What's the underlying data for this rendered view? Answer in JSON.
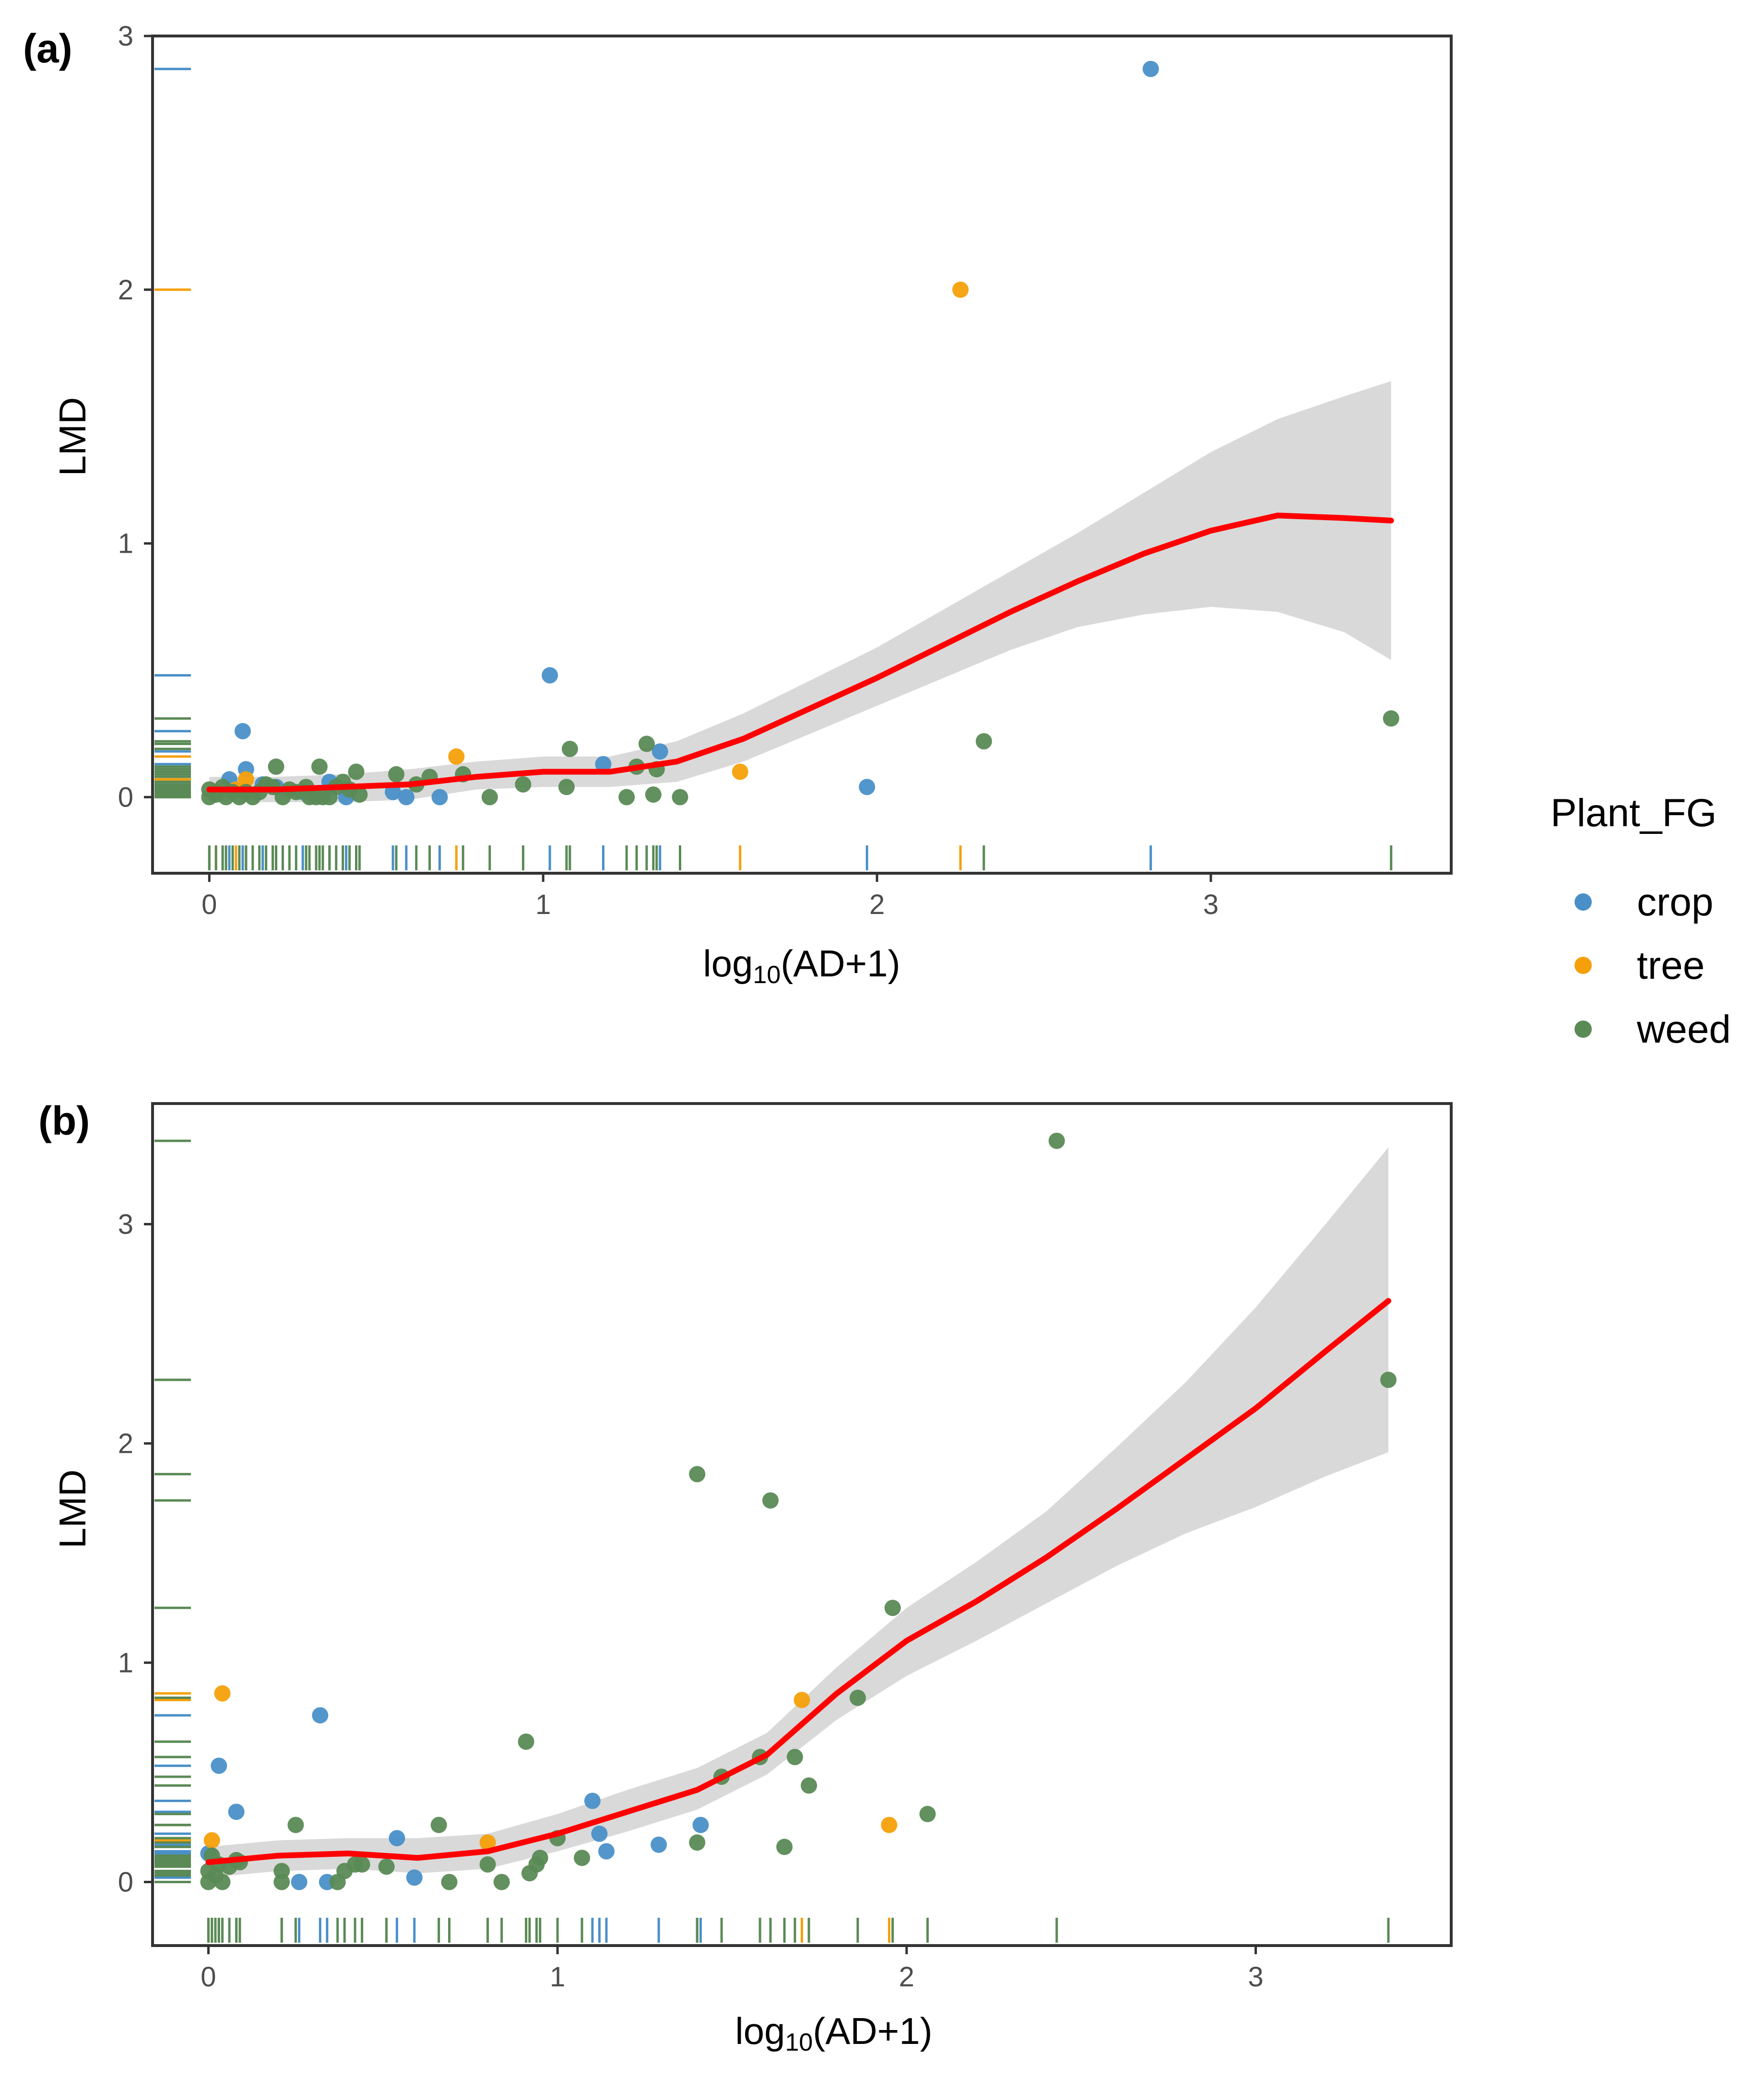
{
  "colors": {
    "crop": "#4A90C8",
    "tree": "#F5A00A",
    "weed": "#5A8A55",
    "smooth_line": "#FF0000",
    "ribbon": "#D9D9D9"
  },
  "legend": {
    "title": "Plant_FG",
    "items": [
      {
        "key": "crop",
        "label": "crop"
      },
      {
        "key": "tree",
        "label": "tree"
      },
      {
        "key": "weed",
        "label": "weed"
      }
    ]
  },
  "chart_data": [
    {
      "type": "scatter",
      "panel_label": "(a)",
      "xlabel_main": "log",
      "xlabel_sub": "10",
      "xlabel_rest": "(AD+1)",
      "ylabel": "LMD",
      "xlim": [
        -0.17,
        3.72
      ],
      "ylim": [
        -0.3,
        3.0
      ],
      "xticks": [
        0,
        1,
        2,
        3
      ],
      "yticks": [
        0,
        1,
        2,
        3
      ],
      "xtick_labels": [
        "0",
        "1",
        "2",
        "3"
      ],
      "ytick_labels": [
        "0",
        "1",
        "2",
        "3"
      ],
      "series": [
        {
          "name": "crop",
          "points": [
            [
              0.06,
              0.07
            ],
            [
              0.1,
              0.26
            ],
            [
              0.11,
              0.11
            ],
            [
              0.16,
              0.05
            ],
            [
              0.2,
              0.04
            ],
            [
              0.28,
              0.02
            ],
            [
              0.36,
              0.06
            ],
            [
              0.41,
              0.0
            ],
            [
              0.55,
              0.02
            ],
            [
              0.59,
              0.0
            ],
            [
              0.69,
              0.0
            ],
            [
              1.02,
              0.48
            ],
            [
              1.18,
              0.13
            ],
            [
              1.35,
              0.18
            ],
            [
              1.97,
              0.04
            ],
            [
              2.82,
              2.87
            ]
          ]
        },
        {
          "name": "tree",
          "points": [
            [
              0.02,
              0.02
            ],
            [
              0.08,
              0.03
            ],
            [
              0.11,
              0.07
            ],
            [
              0.74,
              0.16
            ],
            [
              1.59,
              0.1
            ],
            [
              2.25,
              2.0
            ]
          ]
        },
        {
          "name": "weed",
          "points": [
            [
              0.0,
              0.0
            ],
            [
              0.0,
              0.03
            ],
            [
              0.02,
              0.01
            ],
            [
              0.04,
              0.04
            ],
            [
              0.05,
              0.0
            ],
            [
              0.07,
              0.02
            ],
            [
              0.09,
              0.0
            ],
            [
              0.11,
              0.02
            ],
            [
              0.13,
              0.0
            ],
            [
              0.15,
              0.02
            ],
            [
              0.17,
              0.05
            ],
            [
              0.19,
              0.04
            ],
            [
              0.2,
              0.12
            ],
            [
              0.22,
              0.0
            ],
            [
              0.24,
              0.03
            ],
            [
              0.26,
              0.02
            ],
            [
              0.29,
              0.04
            ],
            [
              0.3,
              0.0
            ],
            [
              0.32,
              0.0
            ],
            [
              0.33,
              0.12
            ],
            [
              0.34,
              0.0
            ],
            [
              0.36,
              0.0
            ],
            [
              0.38,
              0.04
            ],
            [
              0.4,
              0.06
            ],
            [
              0.42,
              0.03
            ],
            [
              0.44,
              0.1
            ],
            [
              0.45,
              0.01
            ],
            [
              0.56,
              0.09
            ],
            [
              0.62,
              0.05
            ],
            [
              0.66,
              0.08
            ],
            [
              0.76,
              0.09
            ],
            [
              0.84,
              0.0
            ],
            [
              0.94,
              0.05
            ],
            [
              1.07,
              0.04
            ],
            [
              1.08,
              0.19
            ],
            [
              1.25,
              0.0
            ],
            [
              1.28,
              0.12
            ],
            [
              1.31,
              0.21
            ],
            [
              1.33,
              0.01
            ],
            [
              1.34,
              0.11
            ],
            [
              1.41,
              0.0
            ],
            [
              2.32,
              0.22
            ],
            [
              3.54,
              0.31
            ]
          ]
        }
      ],
      "smooth": {
        "x": [
          0.0,
          0.2,
          0.4,
          0.6,
          0.8,
          1.0,
          1.2,
          1.4,
          1.6,
          1.8,
          2.0,
          2.2,
          2.4,
          2.6,
          2.8,
          3.0,
          3.2,
          3.4,
          3.54
        ],
        "y": [
          0.03,
          0.03,
          0.04,
          0.05,
          0.08,
          0.1,
          0.1,
          0.14,
          0.23,
          0.35,
          0.47,
          0.6,
          0.73,
          0.85,
          0.96,
          1.05,
          1.11,
          1.1,
          1.09
        ],
        "lower": [
          -0.02,
          -0.02,
          -0.02,
          -0.01,
          0.03,
          0.04,
          0.04,
          0.06,
          0.14,
          0.25,
          0.36,
          0.47,
          0.58,
          0.67,
          0.72,
          0.75,
          0.73,
          0.65,
          0.54
        ],
        "upper": [
          0.08,
          0.08,
          0.09,
          0.11,
          0.14,
          0.16,
          0.16,
          0.22,
          0.33,
          0.46,
          0.59,
          0.74,
          0.89,
          1.04,
          1.2,
          1.36,
          1.49,
          1.58,
          1.64
        ]
      }
    },
    {
      "type": "scatter",
      "panel_label": "(b)",
      "xlabel_main": "log",
      "xlabel_sub": "10",
      "xlabel_rest": "(AD+1)",
      "ylabel": "LMD",
      "xlim": [
        -0.16,
        3.56
      ],
      "ylim": [
        -0.29,
        3.55
      ],
      "xticks": [
        0,
        1,
        2,
        3
      ],
      "yticks": [
        0,
        1,
        2,
        3
      ],
      "xtick_labels": [
        "0",
        "1",
        "2",
        "3"
      ],
      "ytick_labels": [
        "0",
        "1",
        "2",
        "3"
      ],
      "series": [
        {
          "name": "crop",
          "points": [
            [
              0.0,
              0.13
            ],
            [
              0.03,
              0.53
            ],
            [
              0.08,
              0.32
            ],
            [
              0.26,
              0.0
            ],
            [
              0.32,
              0.76
            ],
            [
              0.34,
              0.0
            ],
            [
              0.54,
              0.2
            ],
            [
              0.59,
              0.02
            ],
            [
              1.1,
              0.37
            ],
            [
              1.12,
              0.22
            ],
            [
              1.14,
              0.14
            ],
            [
              1.29,
              0.17
            ],
            [
              1.41,
              0.26
            ]
          ]
        },
        {
          "name": "tree",
          "points": [
            [
              0.01,
              0.19
            ],
            [
              0.04,
              0.86
            ],
            [
              0.8,
              0.18
            ],
            [
              1.7,
              0.83
            ],
            [
              1.95,
              0.26
            ]
          ]
        },
        {
          "name": "weed",
          "points": [
            [
              0.0,
              0.0
            ],
            [
              0.0,
              0.05
            ],
            [
              0.01,
              0.12
            ],
            [
              0.02,
              0.03
            ],
            [
              0.03,
              0.08
            ],
            [
              0.04,
              0.0
            ],
            [
              0.06,
              0.07
            ],
            [
              0.08,
              0.1
            ],
            [
              0.09,
              0.09
            ],
            [
              0.21,
              0.0
            ],
            [
              0.21,
              0.05
            ],
            [
              0.25,
              0.26
            ],
            [
              0.37,
              0.0
            ],
            [
              0.39,
              0.05
            ],
            [
              0.42,
              0.08
            ],
            [
              0.44,
              0.08
            ],
            [
              0.51,
              0.07
            ],
            [
              0.66,
              0.26
            ],
            [
              0.69,
              0.0
            ],
            [
              0.8,
              0.08
            ],
            [
              0.84,
              0.0
            ],
            [
              0.91,
              0.64
            ],
            [
              0.92,
              0.04
            ],
            [
              0.94,
              0.08
            ],
            [
              0.95,
              0.11
            ],
            [
              1.0,
              0.2
            ],
            [
              1.07,
              0.11
            ],
            [
              1.4,
              0.18
            ],
            [
              1.4,
              1.86
            ],
            [
              1.47,
              0.48
            ],
            [
              1.58,
              0.57
            ],
            [
              1.61,
              1.74
            ],
            [
              1.65,
              0.16
            ],
            [
              1.68,
              0.57
            ],
            [
              1.72,
              0.44
            ],
            [
              1.86,
              0.84
            ],
            [
              1.96,
              1.25
            ],
            [
              2.06,
              0.31
            ],
            [
              2.43,
              3.38
            ],
            [
              3.38,
              2.29
            ]
          ]
        }
      ],
      "smooth": {
        "x": [
          0.0,
          0.2,
          0.4,
          0.6,
          0.8,
          1.0,
          1.2,
          1.4,
          1.6,
          1.8,
          2.0,
          2.2,
          2.4,
          2.6,
          2.8,
          3.0,
          3.2,
          3.38
        ],
        "y": [
          0.09,
          0.12,
          0.13,
          0.11,
          0.14,
          0.22,
          0.32,
          0.42,
          0.58,
          0.86,
          1.1,
          1.28,
          1.48,
          1.7,
          1.93,
          2.16,
          2.42,
          2.65
        ],
        "lower": [
          0.02,
          0.05,
          0.06,
          0.04,
          0.06,
          0.14,
          0.23,
          0.33,
          0.49,
          0.74,
          0.94,
          1.1,
          1.27,
          1.44,
          1.59,
          1.71,
          1.85,
          1.96
        ],
        "upper": [
          0.16,
          0.19,
          0.2,
          0.2,
          0.22,
          0.31,
          0.42,
          0.52,
          0.68,
          0.98,
          1.25,
          1.46,
          1.69,
          1.98,
          2.28,
          2.62,
          3.0,
          3.35
        ]
      }
    }
  ]
}
